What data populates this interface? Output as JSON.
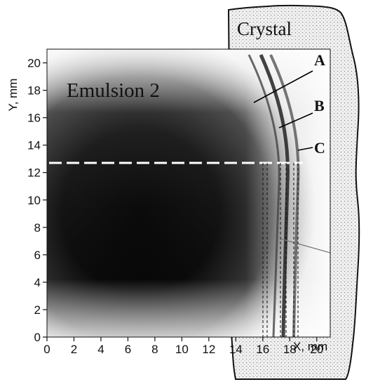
{
  "figure": {
    "panel_label": "Emulsion 2",
    "crystal_label": "Crystal",
    "markers": [
      "A",
      "B",
      "C"
    ]
  },
  "chart_data": {
    "type": "image",
    "xlabel": "X, mm",
    "ylabel": "Y, mm",
    "xlim": [
      0,
      21
    ],
    "ylim": [
      0,
      21
    ],
    "xticks": [
      0,
      2,
      4,
      6,
      8,
      10,
      12,
      14,
      16,
      18,
      20
    ],
    "yticks": [
      0,
      2,
      4,
      6,
      8,
      10,
      12,
      14,
      16,
      18,
      20
    ],
    "dashed_line_y": 12.5,
    "vertical_dashed_lines_x": [
      16.3,
      16.6,
      17.6,
      18.0,
      18.6,
      18.9
    ]
  }
}
